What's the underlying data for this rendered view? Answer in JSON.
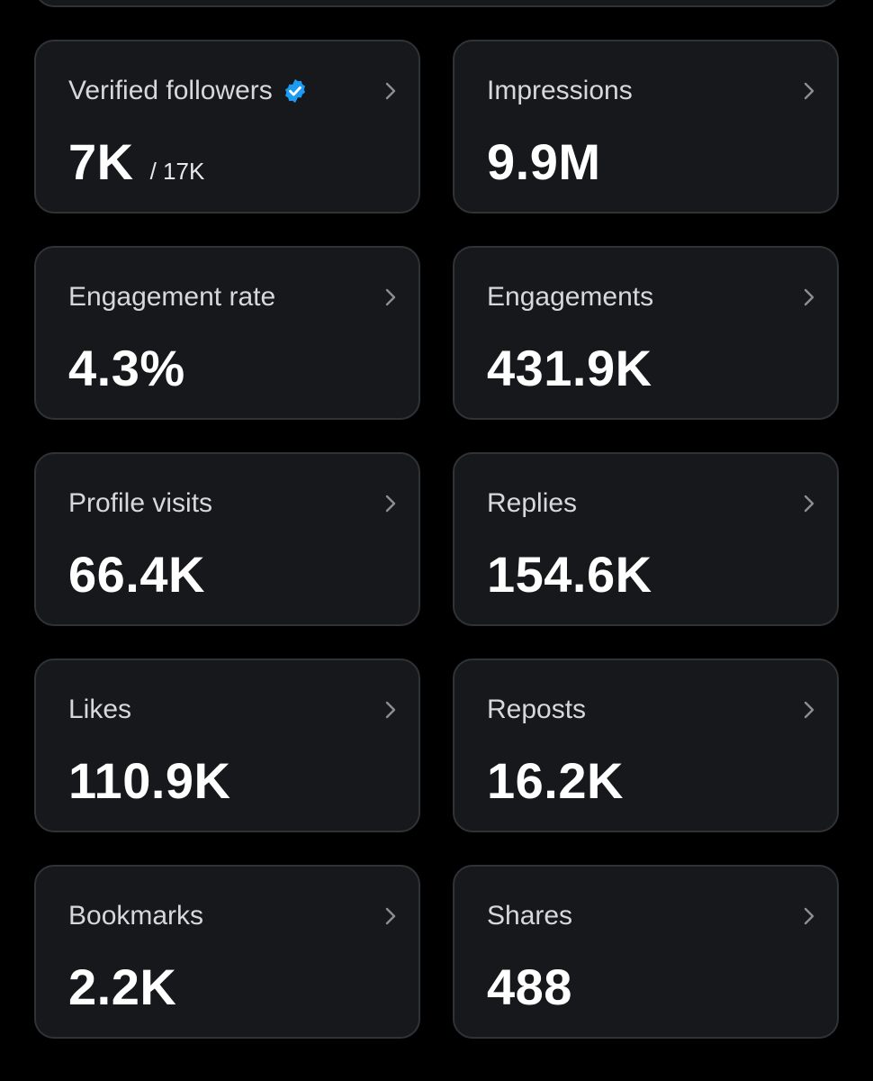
{
  "colors": {
    "background": "#000000",
    "card": "#16181c",
    "border": "#2f3336",
    "verified": "#1d9bf0"
  },
  "icons": {
    "verified": "verified-badge-icon",
    "chevron": "chevron-right-icon"
  },
  "metrics": [
    {
      "label": "Verified followers",
      "value": "7K",
      "sub_value": "/ 17K"
    },
    {
      "label": "Impressions",
      "value": "9.9M"
    },
    {
      "label": "Engagement rate",
      "value": "4.3%"
    },
    {
      "label": "Engagements",
      "value": "431.9K"
    },
    {
      "label": "Profile visits",
      "value": "66.4K"
    },
    {
      "label": "Replies",
      "value": "154.6K"
    },
    {
      "label": "Likes",
      "value": "110.9K"
    },
    {
      "label": "Reposts",
      "value": "16.2K"
    },
    {
      "label": "Bookmarks",
      "value": "2.2K"
    },
    {
      "label": "Shares",
      "value": "488"
    }
  ]
}
